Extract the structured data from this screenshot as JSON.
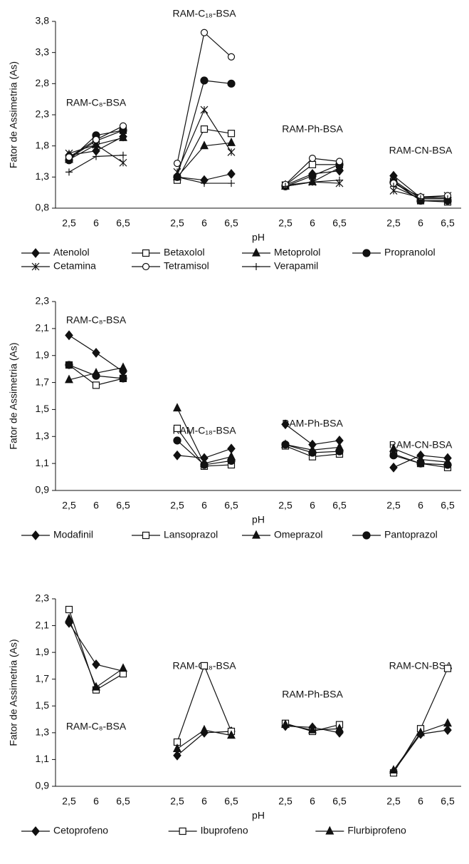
{
  "chart_data": [
    {
      "type": "line",
      "y_label": "Fator de Assimetria (As)",
      "x_label": "pH",
      "group_labels": [
        "RAM-C₈-BSA",
        "RAM-C₁₈-BSA",
        "RAM-Ph-BSA",
        "RAM-CN-BSA"
      ],
      "categories": [
        "2,5",
        "6",
        "6,5",
        null,
        "2,5",
        "6",
        "6,5",
        null,
        "2,5",
        "6",
        "6,5",
        null,
        "2,5",
        "6",
        "6,5"
      ],
      "ylim": [
        0.8,
        3.8
      ],
      "yticks": [
        {
          "value": 0.8,
          "label": "0,8"
        },
        {
          "value": 1.3,
          "label": "1,3"
        },
        {
          "value": 1.8,
          "label": "1,8"
        },
        {
          "value": 2.3,
          "label": "2,3"
        },
        {
          "value": 2.8,
          "label": "2,8"
        },
        {
          "value": 3.3,
          "label": "3,3"
        },
        {
          "value": 3.8,
          "label": "3,8"
        }
      ],
      "series": [
        {
          "name": "Atenolol",
          "color": "#111111",
          "marker": "diamond",
          "values": [
            1.65,
            1.72,
            1.95,
            null,
            1.3,
            1.25,
            1.35,
            null,
            1.17,
            1.35,
            1.4,
            null,
            1.32,
            0.97,
            0.97
          ]
        },
        {
          "name": "Betaxolol",
          "color": "#111111",
          "marker": "square-open",
          "values": [
            1.6,
            1.88,
            2.05,
            null,
            1.25,
            2.07,
            2.0,
            null,
            1.17,
            1.5,
            1.5,
            null,
            1.23,
            0.92,
            0.9
          ]
        },
        {
          "name": "Metoprolol",
          "color": "#111111",
          "marker": "triangle",
          "values": [
            1.58,
            1.82,
            1.93,
            null,
            1.3,
            1.8,
            1.85,
            null,
            1.15,
            1.22,
            1.45,
            null,
            1.25,
            0.95,
            0.95
          ]
        },
        {
          "name": "Propranolol",
          "color": "#111111",
          "marker": "circle",
          "values": [
            1.57,
            1.97,
            2.05,
            null,
            1.3,
            2.85,
            2.8,
            null,
            1.15,
            1.32,
            1.5,
            null,
            1.22,
            0.92,
            0.92
          ]
        },
        {
          "name": "Cetamina",
          "color": "#111111",
          "marker": "asterisk",
          "values": [
            1.68,
            1.82,
            1.53,
            null,
            1.38,
            2.38,
            1.7,
            null,
            1.17,
            1.22,
            1.2,
            null,
            1.08,
            0.97,
            1.0
          ]
        },
        {
          "name": "Tetramisol",
          "color": "#111111",
          "marker": "circle-open",
          "values": [
            1.62,
            1.9,
            2.12,
            null,
            1.52,
            3.62,
            3.23,
            null,
            1.18,
            1.6,
            1.55,
            null,
            1.2,
            0.98,
            1.0
          ]
        },
        {
          "name": "Verapamil",
          "color": "#111111",
          "marker": "plus",
          "values": [
            1.38,
            1.63,
            1.65,
            null,
            1.3,
            1.2,
            1.2,
            null,
            1.15,
            1.22,
            1.25,
            null,
            1.15,
            0.95,
            0.95
          ]
        }
      ]
    },
    {
      "type": "line",
      "y_label": "Fator de Assimetria (As)",
      "x_label": "pH",
      "group_labels": [
        "RAM-C₈-BSA",
        "RAM-C₁₈-BSA",
        "RAM-Ph-BSA",
        "RAM-CN-BSA"
      ],
      "categories": [
        "2,5",
        "6",
        "6,5",
        null,
        "2,5",
        "6",
        "6,5",
        null,
        "2,5",
        "6",
        "6,5",
        null,
        "2,5",
        "6",
        "6,5"
      ],
      "ylim": [
        0.9,
        2.3
      ],
      "yticks": [
        {
          "value": 0.9,
          "label": "0,9"
        },
        {
          "value": 1.1,
          "label": "1,1"
        },
        {
          "value": 1.3,
          "label": "1,3"
        },
        {
          "value": 1.5,
          "label": "1,5"
        },
        {
          "value": 1.7,
          "label": "1,7"
        },
        {
          "value": 1.9,
          "label": "1,9"
        },
        {
          "value": 2.1,
          "label": "2,1"
        },
        {
          "value": 2.3,
          "label": "2,3"
        }
      ],
      "series": [
        {
          "name": "Modafinil",
          "color": "#111111",
          "marker": "diamond",
          "values": [
            2.05,
            1.92,
            1.78,
            null,
            1.16,
            1.14,
            1.21,
            null,
            1.39,
            1.24,
            1.27,
            null,
            1.07,
            1.16,
            1.14
          ]
        },
        {
          "name": "Lansoprazol",
          "color": "#111111",
          "marker": "square-open",
          "values": [
            1.83,
            1.68,
            1.73,
            null,
            1.36,
            1.08,
            1.09,
            null,
            1.23,
            1.15,
            1.17,
            null,
            1.17,
            1.1,
            1.07
          ]
        },
        {
          "name": "Omeprazol",
          "color": "#111111",
          "marker": "triangle",
          "values": [
            1.72,
            1.77,
            1.81,
            null,
            1.51,
            1.1,
            1.15,
            null,
            1.24,
            1.2,
            1.22,
            null,
            1.21,
            1.13,
            1.11
          ]
        },
        {
          "name": "Pantoprazol",
          "color": "#111111",
          "marker": "circle",
          "values": [
            1.83,
            1.75,
            1.73,
            null,
            1.27,
            1.09,
            1.12,
            null,
            1.24,
            1.18,
            1.19,
            null,
            1.16,
            1.1,
            1.09
          ]
        }
      ]
    },
    {
      "type": "line",
      "y_label": "Fator de Assimetria (As)",
      "x_label": "pH",
      "group_labels": [
        "RAM-C₈-BSA",
        "RAM-C₁₈-BSA",
        "RAM-Ph-BSA",
        "RAM-CN-BSA"
      ],
      "categories": [
        "2,5",
        "6",
        "6,5",
        null,
        "2,5",
        "6",
        "6,5",
        null,
        "2,5",
        "6",
        "6,5",
        null,
        "2,5",
        "6",
        "6,5"
      ],
      "ylim": [
        0.9,
        2.3
      ],
      "yticks": [
        {
          "value": 0.9,
          "label": "0,9"
        },
        {
          "value": 1.1,
          "label": "1,1"
        },
        {
          "value": 1.3,
          "label": "1,3"
        },
        {
          "value": 1.5,
          "label": "1,5"
        },
        {
          "value": 1.7,
          "label": "1,7"
        },
        {
          "value": 1.9,
          "label": "1,9"
        },
        {
          "value": 2.1,
          "label": "2,1"
        },
        {
          "value": 2.3,
          "label": "2,3"
        }
      ],
      "series": [
        {
          "name": "Cetoprofeno",
          "color": "#111111",
          "marker": "diamond",
          "values": [
            2.12,
            1.81,
            1.76,
            null,
            1.13,
            1.3,
            1.31,
            null,
            1.35,
            1.34,
            1.3,
            null,
            1.01,
            1.29,
            1.32
          ]
        },
        {
          "name": "Ibuprofeno",
          "color": "#111111",
          "marker": "square-open",
          "values": [
            2.22,
            1.62,
            1.74,
            null,
            1.23,
            1.8,
            1.31,
            null,
            1.37,
            1.31,
            1.36,
            null,
            1.0,
            1.33,
            1.78
          ]
        },
        {
          "name": "Flurbiprofeno",
          "color": "#111111",
          "marker": "triangle",
          "values": [
            2.15,
            1.64,
            1.78,
            null,
            1.18,
            1.32,
            1.28,
            null,
            1.36,
            1.32,
            1.33,
            null,
            1.02,
            1.3,
            1.37
          ]
        }
      ]
    }
  ]
}
